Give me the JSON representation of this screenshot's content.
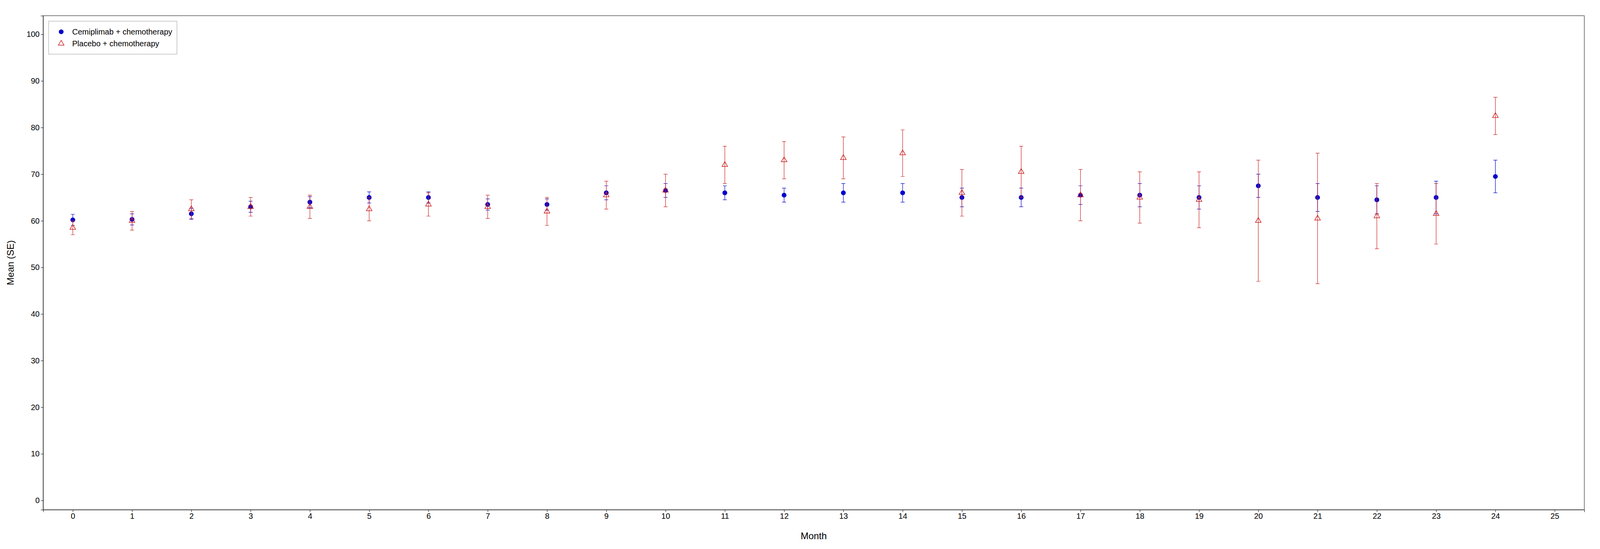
{
  "chart_data": {
    "type": "scatter",
    "xlabel": "Month",
    "ylabel": "Mean (SE)",
    "xlim": [
      -0.5,
      25.5
    ],
    "ylim": [
      -2,
      104
    ],
    "xticks": [
      0,
      1,
      2,
      3,
      4,
      5,
      6,
      7,
      8,
      9,
      10,
      11,
      12,
      13,
      14,
      15,
      16,
      17,
      18,
      19,
      20,
      21,
      22,
      23,
      24,
      25
    ],
    "yticks": [
      0,
      10,
      20,
      30,
      40,
      50,
      60,
      70,
      80,
      90,
      100
    ],
    "grid": false,
    "legend": "upper left",
    "x": [
      0,
      1,
      2,
      3,
      4,
      5,
      6,
      7,
      8,
      9,
      10,
      11,
      12,
      13,
      14,
      15,
      16,
      17,
      18,
      19,
      20,
      21,
      22,
      23,
      24
    ],
    "series": [
      {
        "name": "Cemiplimab + chemotherapy",
        "color": "#0000CC",
        "marker": "circle",
        "values": [
          60.2,
          60.3,
          61.5,
          63.0,
          64.0,
          65.0,
          65.0,
          63.5,
          63.5,
          66.0,
          66.5,
          66.0,
          65.5,
          66.0,
          66.0,
          65.0,
          65.0,
          65.5,
          65.5,
          65.0,
          67.5,
          65.0,
          64.5,
          65.0,
          69.5
        ],
        "errors": [
          1.2,
          1.2,
          1.2,
          1.2,
          1.2,
          1.2,
          1.2,
          1.2,
          1.2,
          1.5,
          1.5,
          1.5,
          1.5,
          2.0,
          2.0,
          2.0,
          2.0,
          2.0,
          2.5,
          2.5,
          2.5,
          3.0,
          3.0,
          3.5,
          3.5
        ]
      },
      {
        "name": "Placebo + chemotherapy",
        "color": "#CC2222",
        "marker": "triangle-open",
        "values": [
          58.5,
          60.0,
          62.5,
          63.0,
          63.0,
          62.5,
          63.5,
          63.0,
          62.0,
          65.5,
          66.5,
          72.0,
          73.0,
          73.5,
          74.5,
          66.0,
          70.5,
          65.5,
          65.0,
          64.5,
          60.0,
          60.5,
          61.0,
          61.5,
          82.5
        ],
        "errors": [
          1.5,
          2.0,
          2.0,
          2.0,
          2.5,
          2.5,
          2.5,
          2.5,
          3.0,
          3.0,
          3.5,
          4.0,
          4.0,
          4.5,
          5.0,
          5.0,
          5.5,
          5.5,
          5.5,
          6.0,
          13.0,
          14.0,
          7.0,
          6.5,
          4.0
        ]
      }
    ]
  }
}
